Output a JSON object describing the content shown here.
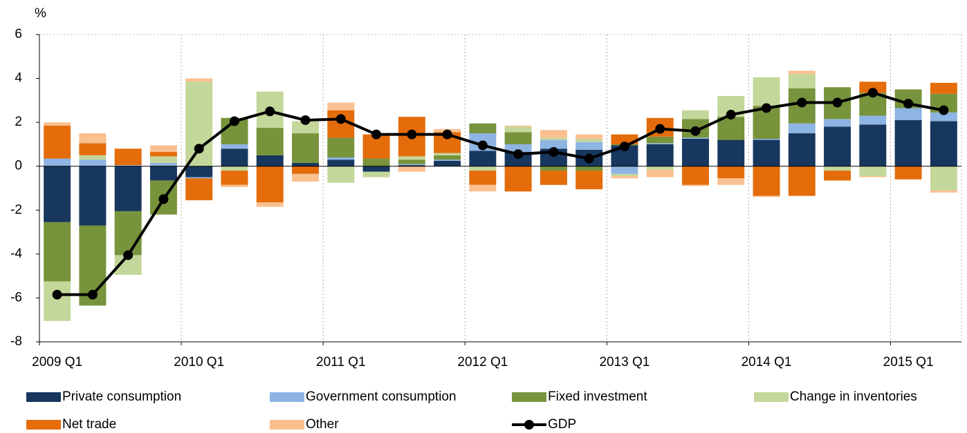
{
  "chart_data": {
    "type": "bar",
    "stacked": true,
    "ylabel": "%",
    "categories": [
      "2009 Q1",
      null,
      null,
      null,
      "2010 Q1",
      null,
      null,
      null,
      "2011 Q1",
      null,
      null,
      null,
      "2012 Q1",
      null,
      null,
      null,
      "2013 Q1",
      null,
      null,
      null,
      "2014 Q1",
      null,
      null,
      null,
      "2015 Q1",
      null
    ],
    "ylim": [
      -8,
      6
    ],
    "yticks": [
      -8,
      -6,
      -4,
      -2,
      0,
      2,
      4,
      6
    ],
    "series": [
      {
        "name": "Private consumption",
        "color": "#17375e",
        "values": [
          -2.55,
          -2.7,
          -2.05,
          -0.65,
          -0.5,
          0.8,
          0.5,
          0.15,
          0.3,
          -0.25,
          0.05,
          0.25,
          0.7,
          0.65,
          0.8,
          0.75,
          0.95,
          1.0,
          1.25,
          1.2,
          1.2,
          1.5,
          1.8,
          1.9,
          2.1,
          2.05
        ]
      },
      {
        "name": "Government consumption",
        "color": "#8db4e2",
        "values": [
          0.35,
          0.3,
          0.05,
          0.15,
          -0.05,
          0.2,
          0,
          0,
          0.1,
          0,
          0.05,
          0.05,
          0.8,
          0.35,
          0.4,
          0.35,
          -0.35,
          0.05,
          0.05,
          0,
          0.05,
          0.45,
          0.35,
          0.4,
          0.55,
          0.4
        ]
      },
      {
        "name": "Fixed investment",
        "color": "#77933c",
        "values": [
          -2.7,
          -3.65,
          -2.0,
          -1.55,
          0,
          1.2,
          1.25,
          1.35,
          0.9,
          0.35,
          0.2,
          0.2,
          0.45,
          0.55,
          -0.2,
          -0.2,
          0.05,
          0.3,
          0.85,
          1.05,
          1.5,
          1.6,
          1.45,
          1.05,
          0.85,
          0.85
        ]
      },
      {
        "name": "Change in inventories",
        "color": "#c4d79b",
        "values": [
          -1.8,
          0.2,
          -0.9,
          0.3,
          3.85,
          -0.2,
          1.65,
          0.55,
          -0.75,
          -0.25,
          0.15,
          0.1,
          -0.2,
          0.25,
          0.1,
          0.15,
          -0.1,
          -0.15,
          0.4,
          0.95,
          1.3,
          0.65,
          -0.2,
          -0.45,
          0,
          -1.1
        ]
      },
      {
        "name": "Net trade",
        "color": "#e46c0a",
        "values": [
          1.5,
          0.55,
          0.75,
          0.2,
          -1.0,
          -0.65,
          -1.65,
          -0.35,
          1.25,
          1.1,
          1.8,
          0.95,
          -0.65,
          -1.15,
          -0.65,
          -0.85,
          0.45,
          0.85,
          -0.85,
          -0.55,
          -1.35,
          -1.35,
          -0.45,
          0.5,
          -0.6,
          0.5
        ]
      },
      {
        "name": "Other",
        "color": "#fac090",
        "values": [
          0.15,
          0.45,
          0,
          0.3,
          0.15,
          -0.1,
          -0.2,
          -0.35,
          0.35,
          0,
          -0.25,
          0.15,
          -0.3,
          0.05,
          0.35,
          0.2,
          -0.1,
          -0.35,
          -0.05,
          -0.3,
          -0.05,
          0.15,
          0,
          -0.05,
          0,
          -0.1
        ]
      },
      {
        "name": "GDP",
        "color": "#000000",
        "type": "line",
        "values": [
          -5.85,
          -5.85,
          -4.05,
          -1.5,
          0.8,
          2.05,
          2.5,
          2.1,
          2.15,
          1.45,
          1.45,
          1.45,
          0.95,
          0.55,
          0.65,
          0.35,
          0.9,
          1.7,
          1.6,
          2.35,
          2.65,
          2.9,
          2.9,
          3.35,
          2.85,
          2.55
        ]
      }
    ]
  }
}
